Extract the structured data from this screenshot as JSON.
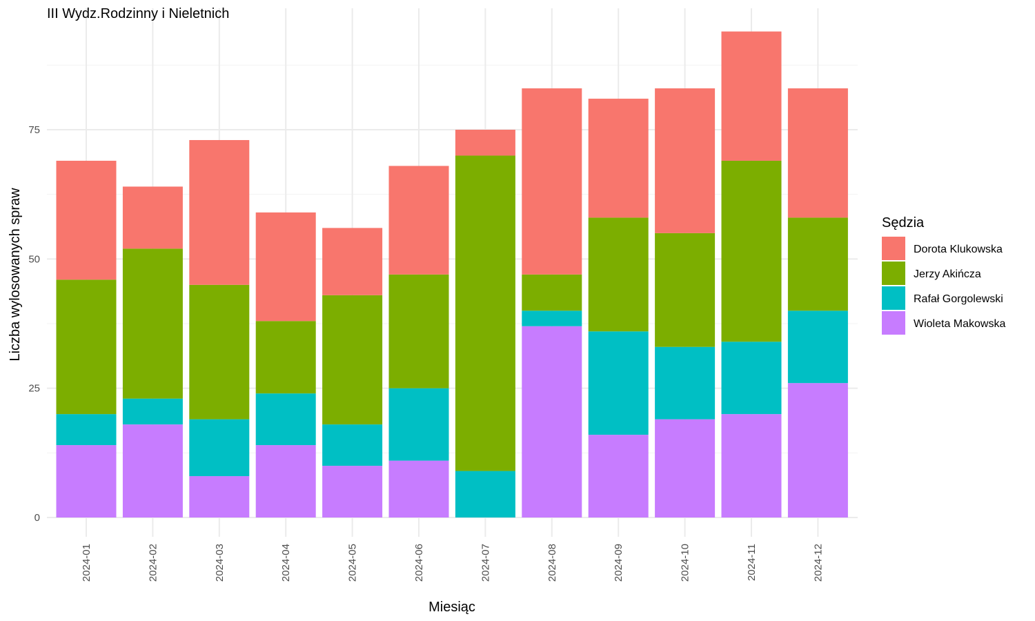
{
  "chart_data": {
    "type": "bar",
    "stacked": true,
    "title": "III Wydz.Rodzinny i Nieletnich",
    "xlabel": "Miesiąc",
    "ylabel": "Liczba wylosowanych spraw",
    "ylim": [
      0,
      98
    ],
    "yticks": [
      0,
      25,
      50,
      75
    ],
    "grid": true,
    "legend": {
      "title": "Sędzia",
      "position": "right"
    },
    "categories": [
      "2024-01",
      "2024-02",
      "2024-03",
      "2024-04",
      "2024-05",
      "2024-06",
      "2024-07",
      "2024-08",
      "2024-09",
      "2024-10",
      "2024-11",
      "2024-12"
    ],
    "series": [
      {
        "name": "Wioleta Makowska",
        "color": "#C77CFF",
        "values": [
          14,
          18,
          8,
          14,
          10,
          11,
          0,
          37,
          16,
          19,
          20,
          26
        ]
      },
      {
        "name": "Rafał Gorgolewski",
        "color": "#00BFC4",
        "values": [
          6,
          5,
          11,
          10,
          8,
          14,
          9,
          3,
          20,
          14,
          14,
          14
        ]
      },
      {
        "name": "Jerzy Akińcza",
        "color": "#7CAE00",
        "values": [
          26,
          29,
          26,
          14,
          25,
          22,
          61,
          7,
          22,
          22,
          35,
          18
        ]
      },
      {
        "name": "Dorota Klukowska",
        "color": "#F8766D",
        "values": [
          23,
          12,
          28,
          21,
          13,
          21,
          5,
          36,
          23,
          28,
          25,
          25
        ]
      }
    ],
    "legend_order": [
      "Dorota Klukowska",
      "Jerzy Akińcza",
      "Rafał Gorgolewski",
      "Wioleta Makowska"
    ]
  }
}
